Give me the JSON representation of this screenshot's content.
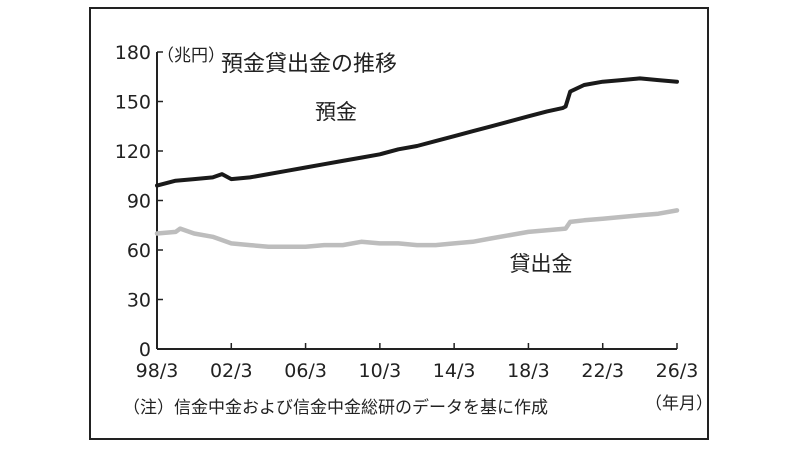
{
  "chart_data": {
    "type": "line",
    "title": "預金貸出金の推移",
    "y_unit_label": "（兆円）",
    "x_unit_label": "（年月）",
    "note": "（注）信金中金および信金中金総研のデータを基に作成",
    "x_ticks": [
      "98/3",
      "02/3",
      "06/3",
      "10/3",
      "14/3",
      "18/3",
      "22/3",
      "26/3"
    ],
    "y_ticks": [
      0,
      30,
      60,
      90,
      120,
      150,
      180
    ],
    "ylim": [
      0,
      180
    ],
    "grid": false,
    "series": [
      {
        "name": "預金",
        "color": "#1a1a1a",
        "points": [
          [
            "1998-03",
            99
          ],
          [
            "1999-03",
            102
          ],
          [
            "2000-03",
            103
          ],
          [
            "2001-03",
            104
          ],
          [
            "2001-09",
            106
          ],
          [
            "2002-03",
            103
          ],
          [
            "2003-03",
            104
          ],
          [
            "2004-03",
            106
          ],
          [
            "2005-03",
            108
          ],
          [
            "2006-03",
            110
          ],
          [
            "2007-03",
            112
          ],
          [
            "2008-03",
            114
          ],
          [
            "2009-03",
            116
          ],
          [
            "2010-03",
            118
          ],
          [
            "2011-03",
            121
          ],
          [
            "2012-03",
            123
          ],
          [
            "2013-03",
            126
          ],
          [
            "2014-03",
            129
          ],
          [
            "2015-03",
            132
          ],
          [
            "2016-03",
            135
          ],
          [
            "2017-03",
            138
          ],
          [
            "2018-03",
            141
          ],
          [
            "2019-03",
            144
          ],
          [
            "2020-01",
            146
          ],
          [
            "2020-03",
            147
          ],
          [
            "2020-06",
            156
          ],
          [
            "2021-03",
            160
          ],
          [
            "2022-03",
            162
          ],
          [
            "2023-03",
            163
          ],
          [
            "2024-03",
            164
          ],
          [
            "2025-03",
            163
          ],
          [
            "2026-03",
            162
          ]
        ]
      },
      {
        "name": "貸出金",
        "color": "#bdbdbd",
        "points": [
          [
            "1998-03",
            70
          ],
          [
            "1999-03",
            71
          ],
          [
            "1999-06",
            73
          ],
          [
            "2000-03",
            70
          ],
          [
            "2001-03",
            68
          ],
          [
            "2002-03",
            64
          ],
          [
            "2003-03",
            63
          ],
          [
            "2004-03",
            62
          ],
          [
            "2005-03",
            62
          ],
          [
            "2006-03",
            62
          ],
          [
            "2007-03",
            63
          ],
          [
            "2008-03",
            63
          ],
          [
            "2009-03",
            65
          ],
          [
            "2010-03",
            64
          ],
          [
            "2011-03",
            64
          ],
          [
            "2012-03",
            63
          ],
          [
            "2013-03",
            63
          ],
          [
            "2014-03",
            64
          ],
          [
            "2015-03",
            65
          ],
          [
            "2016-03",
            67
          ],
          [
            "2017-03",
            69
          ],
          [
            "2018-03",
            71
          ],
          [
            "2019-03",
            72
          ],
          [
            "2020-03",
            73
          ],
          [
            "2020-06",
            77
          ],
          [
            "2021-03",
            78
          ],
          [
            "2022-03",
            79
          ],
          [
            "2023-03",
            80
          ],
          [
            "2024-03",
            81
          ],
          [
            "2025-03",
            82
          ],
          [
            "2026-03",
            84
          ]
        ]
      }
    ]
  }
}
